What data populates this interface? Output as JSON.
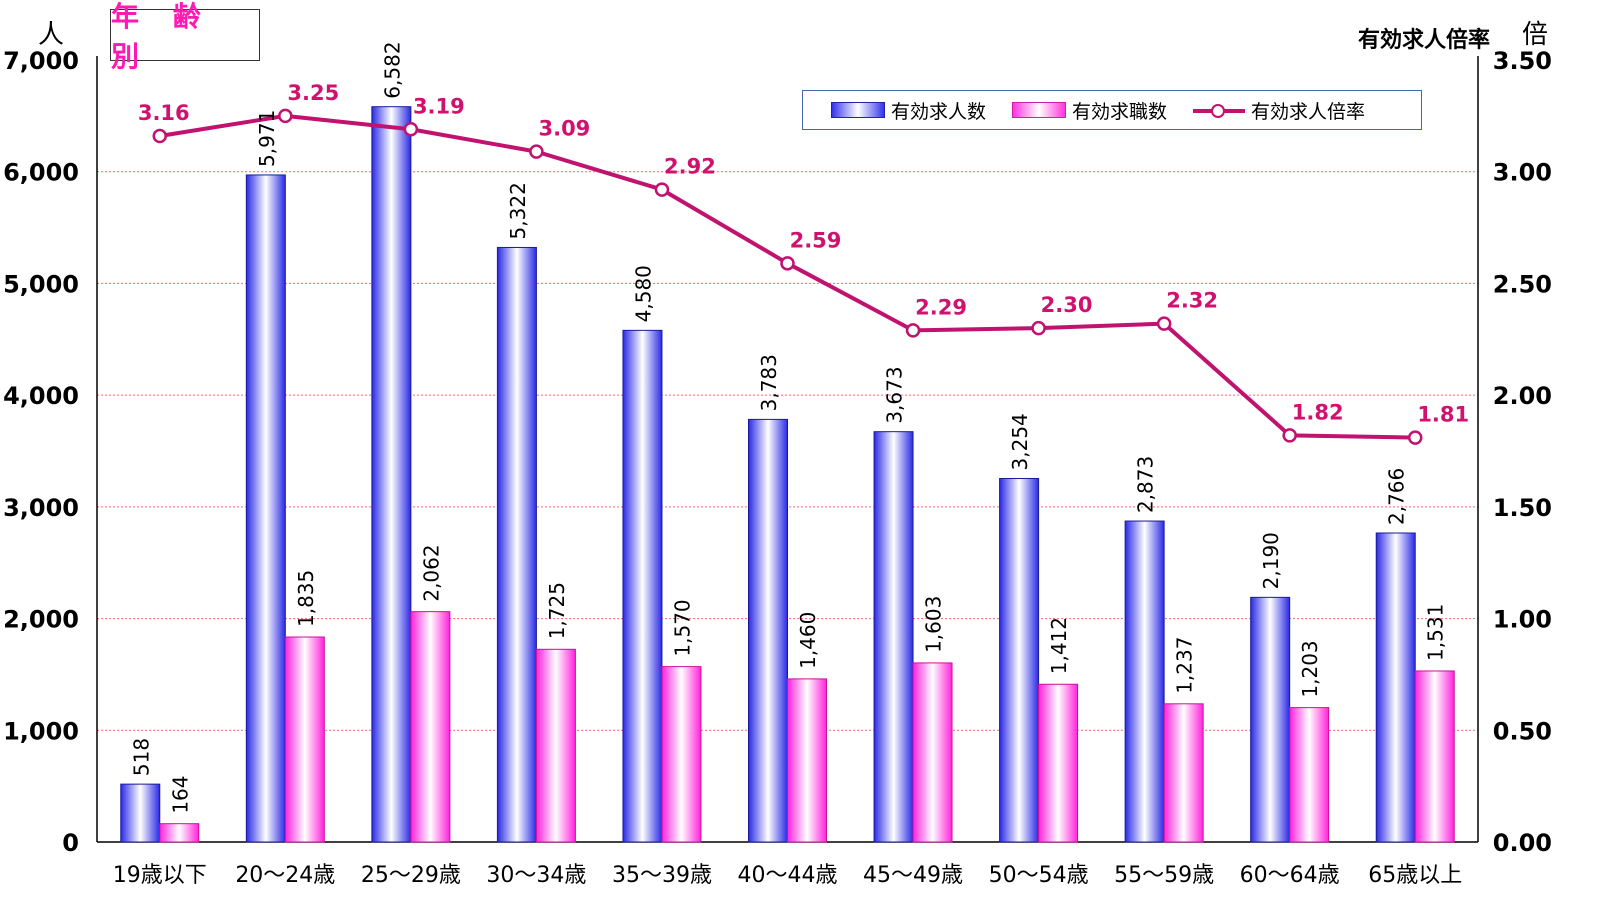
{
  "chart_data": {
    "type": "bar",
    "title": "年 齢 別",
    "ylabel": "人",
    "y2label": "倍",
    "y2title": "有効求人倍率",
    "ylim": [
      0,
      7000
    ],
    "y2lim": [
      0.0,
      3.5
    ],
    "yticks": [
      "0",
      "1,000",
      "2,000",
      "3,000",
      "4,000",
      "5,000",
      "6,000",
      "7,000"
    ],
    "y2ticks": [
      "0.00",
      "0.50",
      "1.00",
      "1.50",
      "2.00",
      "2.50",
      "3.00",
      "3.50"
    ],
    "categories": [
      "19歳以下",
      "20～24歳",
      "25～29歳",
      "30～34歳",
      "35～39歳",
      "40～44歳",
      "45～49歳",
      "50～54歳",
      "55～59歳",
      "60～64歳",
      "65歳以上"
    ],
    "series": [
      {
        "name": "有効求人数",
        "kind": "bar",
        "color": "#3333ee",
        "values": [
          518,
          5971,
          6582,
          5322,
          4580,
          3783,
          3673,
          3254,
          2873,
          2190,
          2766
        ],
        "labels": [
          "518",
          "5,971",
          "6,582",
          "5,322",
          "4,580",
          "3,783",
          "3,673",
          "3,254",
          "2,873",
          "2,190",
          "2,766"
        ]
      },
      {
        "name": "有効求職数",
        "kind": "bar",
        "color": "#ff33dd",
        "values": [
          164,
          1835,
          2062,
          1725,
          1570,
          1460,
          1603,
          1412,
          1237,
          1203,
          1531
        ],
        "labels": [
          "164",
          "1,835",
          "2,062",
          "1,725",
          "1,570",
          "1,460",
          "1,603",
          "1,412",
          "1,237",
          "1,203",
          "1,531"
        ]
      },
      {
        "name": "有効求人倍率",
        "kind": "line",
        "axis": "right",
        "color": "#c0126e",
        "values": [
          3.16,
          3.25,
          3.19,
          3.09,
          2.92,
          2.59,
          2.29,
          2.3,
          2.32,
          1.82,
          1.81
        ],
        "labels": [
          "3.16",
          "3.25",
          "3.19",
          "3.09",
          "2.92",
          "2.59",
          "2.29",
          "2.30",
          "2.32",
          "1.82",
          "1.81"
        ]
      }
    ],
    "grid": true,
    "legend": "top-right"
  }
}
